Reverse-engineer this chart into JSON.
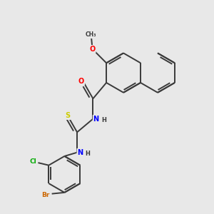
{
  "background_color": "#e8e8e8",
  "bond_color": "#3a3a3a",
  "atom_colors": {
    "O": "#ff0000",
    "N": "#0000ff",
    "S": "#cccc00",
    "Cl": "#00aa00",
    "Br": "#cc6600",
    "C": "#3a3a3a",
    "H": "#3a3a3a"
  },
  "figsize": [
    3.0,
    3.0
  ],
  "dpi": 100
}
